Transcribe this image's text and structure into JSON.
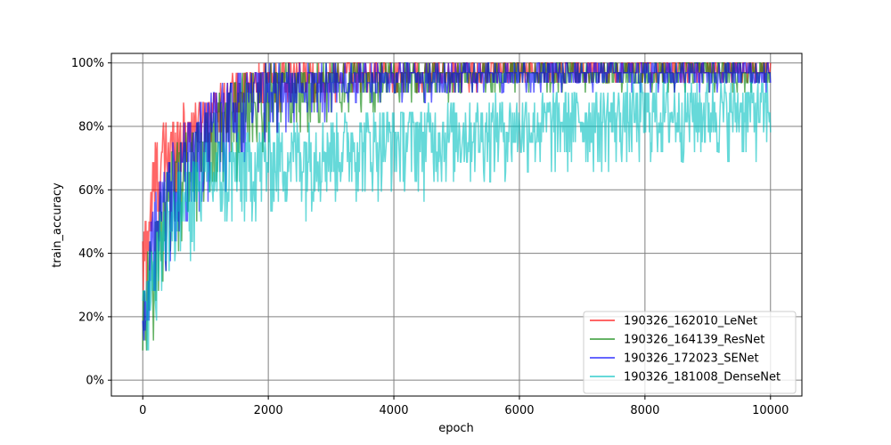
{
  "chart_data": {
    "type": "line",
    "title": "",
    "xlabel": "epoch",
    "ylabel": "train_accuracy",
    "xlim": [
      -500,
      10500
    ],
    "ylim": [
      -0.05,
      1.03
    ],
    "x_ticks": [
      0,
      2000,
      4000,
      6000,
      8000,
      10000
    ],
    "x_tick_labels": [
      "0",
      "2000",
      "4000",
      "6000",
      "8000",
      "10000"
    ],
    "y_ticks": [
      0,
      0.2,
      0.4,
      0.6,
      0.8,
      1.0
    ],
    "y_tick_labels": [
      "0%",
      "20%",
      "40%",
      "60%",
      "80%",
      "100%"
    ],
    "grid": true,
    "legend_position": "lower-right",
    "series": [
      {
        "name": "190326_162010_LeNet",
        "color": "#ff0000",
        "opacity": 0.6,
        "x": [
          0,
          200,
          500,
          1000,
          1500,
          2000,
          3000,
          4000,
          5000,
          6000,
          7000,
          8000,
          9000,
          10000
        ],
        "upper": [
          0.47,
          0.78,
          0.85,
          0.9,
          0.97,
          1.0,
          1.0,
          1.0,
          1.0,
          1.0,
          1.0,
          1.0,
          1.0,
          1.0
        ],
        "lower": [
          0.1,
          0.35,
          0.55,
          0.72,
          0.8,
          0.84,
          0.88,
          0.9,
          0.91,
          0.92,
          0.93,
          0.94,
          0.94,
          0.94
        ]
      },
      {
        "name": "190326_164139_ResNet",
        "color": "#008000",
        "opacity": 0.6,
        "x": [
          0,
          200,
          500,
          1000,
          1500,
          2000,
          3000,
          4000,
          5000,
          6000,
          7000,
          8000,
          9000,
          10000
        ],
        "upper": [
          0.3,
          0.55,
          0.75,
          0.88,
          0.95,
          1.0,
          1.0,
          1.0,
          1.0,
          1.0,
          1.0,
          1.0,
          1.0,
          1.0
        ],
        "lower": [
          0.0,
          0.1,
          0.35,
          0.5,
          0.62,
          0.72,
          0.8,
          0.85,
          0.88,
          0.9,
          0.9,
          0.9,
          0.9,
          0.9
        ]
      },
      {
        "name": "190326_172023_SENet",
        "color": "#0000ff",
        "opacity": 0.6,
        "x": [
          0,
          200,
          500,
          1000,
          1500,
          2000,
          3000,
          4000,
          5000,
          6000,
          7000,
          8000,
          9000,
          10000
        ],
        "upper": [
          0.28,
          0.6,
          0.78,
          0.9,
          0.97,
          1.0,
          1.0,
          1.0,
          1.0,
          1.0,
          1.0,
          1.0,
          1.0,
          1.0
        ],
        "lower": [
          0.0,
          0.12,
          0.3,
          0.5,
          0.62,
          0.72,
          0.82,
          0.86,
          0.88,
          0.9,
          0.9,
          0.91,
          0.91,
          0.91
        ]
      },
      {
        "name": "190326_181008_DenseNet",
        "color": "#00c0c0",
        "opacity": 0.6,
        "x": [
          0,
          200,
          500,
          1000,
          1500,
          2000,
          3000,
          4000,
          5000,
          6000,
          7000,
          8000,
          9000,
          10000
        ],
        "upper": [
          0.3,
          0.5,
          0.65,
          0.75,
          0.78,
          0.8,
          0.84,
          0.86,
          0.88,
          0.9,
          0.92,
          0.93,
          0.94,
          0.94
        ],
        "lower": [
          0.0,
          0.15,
          0.3,
          0.38,
          0.42,
          0.48,
          0.52,
          0.55,
          0.58,
          0.6,
          0.62,
          0.64,
          0.66,
          0.68
        ]
      }
    ]
  }
}
